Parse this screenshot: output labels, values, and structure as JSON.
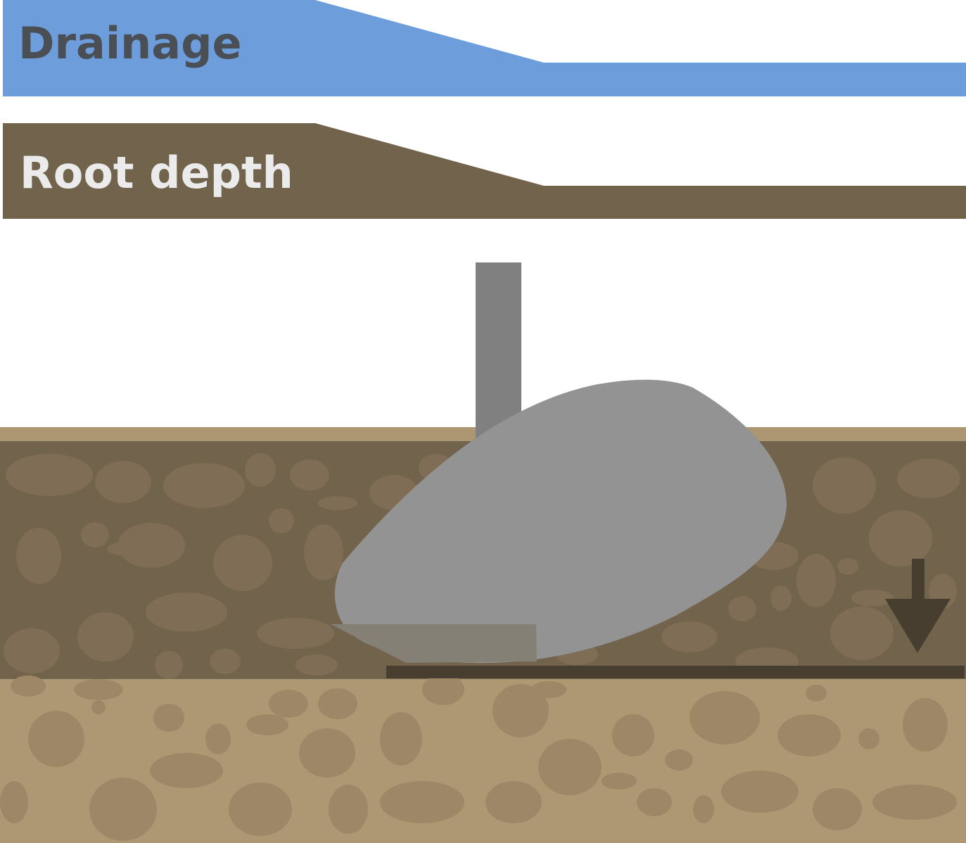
{
  "banners": {
    "drainage": {
      "label": "Drainage",
      "fill": "#6d9edb",
      "text_color": "#4a4e55"
    },
    "root_depth": {
      "label": "Root depth",
      "fill": "#71634c",
      "text_color": "#ebebeb"
    }
  },
  "colors": {
    "topsoil": "#71634c",
    "topsoil_stones": "#7f6e55",
    "surface_strip": "#ad9772",
    "subsoil": "#ae9874",
    "subsoil_stones": "#9e8766",
    "plough_body": "#939393",
    "plough_beam": "#808080",
    "share_blade": "#858076",
    "pan_layer": "#473e30",
    "arrow": "#473e30"
  },
  "icons": {
    "depth_arrow": "arrow-down-icon"
  }
}
